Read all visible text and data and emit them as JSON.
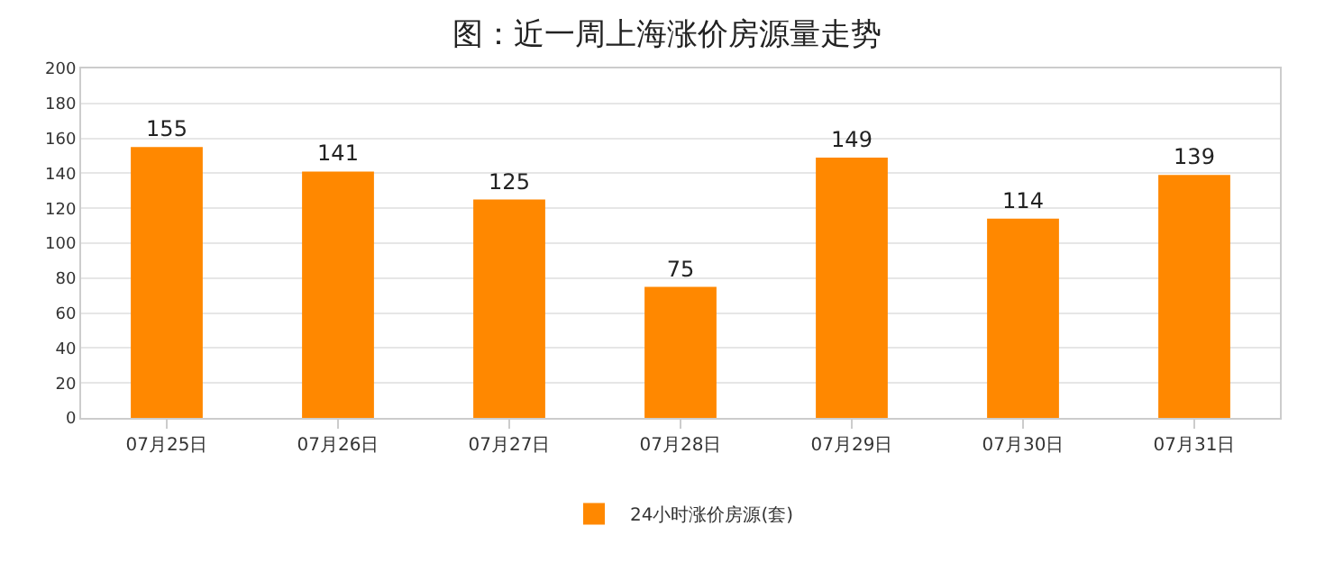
{
  "chart_data": {
    "type": "bar",
    "title": "图：近一周上海涨价房源量走势",
    "categories": [
      "07月25日",
      "07月26日",
      "07月27日",
      "07月28日",
      "07月29日",
      "07月30日",
      "07月31日"
    ],
    "series": [
      {
        "name": "24小时涨价房源(套)",
        "color": "#ff8800",
        "values": [
          155,
          141,
          125,
          75,
          149,
          114,
          139
        ]
      }
    ],
    "ylim": [
      0,
      200
    ],
    "yticks": [
      0,
      20,
      40,
      60,
      80,
      100,
      120,
      140,
      160,
      180,
      200
    ],
    "grid": "y",
    "legend": "bottom",
    "data_labels": true
  }
}
